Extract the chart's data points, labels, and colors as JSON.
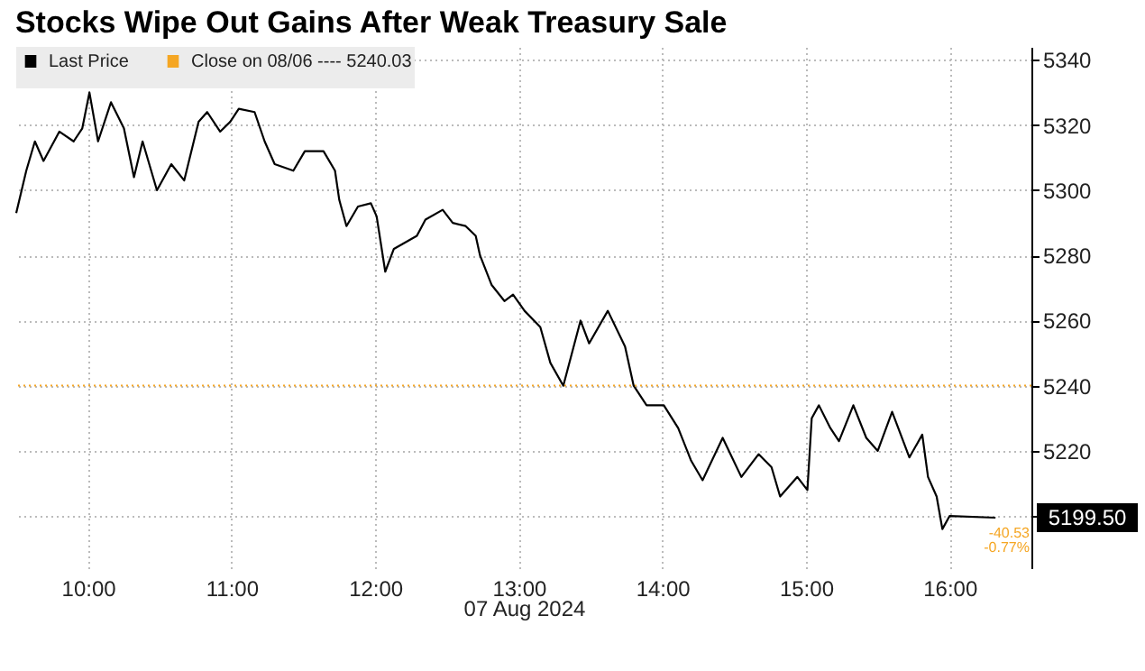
{
  "chart_data": {
    "type": "line",
    "title": "Stocks Wipe Out Gains After Weak Treasury Sale",
    "xlabel": "07 Aug 2024",
    "x": [
      9.5,
      9.57,
      9.63,
      9.69,
      9.8,
      9.9,
      9.96,
      10.01,
      10.07,
      10.16,
      10.25,
      10.32,
      10.38,
      10.48,
      10.58,
      10.67,
      10.77,
      10.83,
      10.92,
      10.99,
      11.05,
      11.16,
      11.23,
      11.3,
      11.43,
      11.51,
      11.64,
      11.72,
      11.75,
      11.8,
      11.88,
      11.97,
      12.01,
      12.07,
      12.13,
      12.29,
      12.35,
      12.47,
      12.54,
      12.63,
      12.7,
      12.73,
      12.81,
      12.9,
      12.96,
      13.04,
      13.15,
      13.22,
      13.31,
      13.43,
      13.49,
      13.62,
      13.74,
      13.8,
      13.89,
      14.01,
      14.11,
      14.2,
      14.28,
      14.42,
      14.55,
      14.67,
      14.76,
      14.82,
      14.94,
      15.01,
      15.04,
      15.09,
      15.17,
      15.23,
      15.33,
      15.42,
      15.5,
      15.6,
      15.72,
      15.81,
      15.85,
      15.91,
      15.95,
      16.0,
      16.32
    ],
    "series": [
      {
        "name": "Last Price",
        "color": "#000000",
        "values": [
          5293,
          5306,
          5315,
          5309,
          5318,
          5315,
          5319,
          5330,
          5315,
          5327,
          5319,
          5304,
          5315,
          5300,
          5308,
          5303,
          5321,
          5324,
          5318,
          5321,
          5325,
          5324,
          5315,
          5308,
          5306,
          5312,
          5312,
          5306,
          5297,
          5289,
          5295,
          5296,
          5292,
          5275,
          5282,
          5286,
          5291,
          5294,
          5290,
          5289,
          5286,
          5280,
          5271,
          5266,
          5268,
          5263,
          5258,
          5247,
          5240,
          5260,
          5253,
          5263,
          5252,
          5240,
          5234,
          5234,
          5227,
          5217,
          5211,
          5224,
          5212,
          5219,
          5215,
          5206,
          5212,
          5208,
          5230,
          5234,
          5227,
          5223,
          5234,
          5224,
          5220,
          5232,
          5218,
          5225,
          5212,
          5206,
          5196,
          5200,
          5199.5
        ]
      }
    ],
    "xlim": [
      9.5,
      16.57
    ],
    "xticks": [
      {
        "value": 10,
        "label": "10:00"
      },
      {
        "value": 11,
        "label": "11:00"
      },
      {
        "value": 12,
        "label": "12:00"
      },
      {
        "value": 13,
        "label": "13:00"
      },
      {
        "value": 14,
        "label": "14:00"
      },
      {
        "value": 15,
        "label": "15:00"
      },
      {
        "value": 16,
        "label": "16:00"
      }
    ],
    "ylim": [
      5184,
      5344
    ],
    "yticks": [
      {
        "value": 5200,
        "label": null
      },
      5220,
      5240,
      5260,
      5280,
      5300,
      5320,
      5340
    ],
    "grid": true,
    "legend": "top left",
    "line_style": "solid",
    "ref_lines": [
      {
        "axis": "y",
        "value": 5240.03,
        "label": "Close on 08/06 ---- 5240.03",
        "color": "#f5a623",
        "line_style": "dotted"
      }
    ],
    "annotations": [
      "5199.50",
      "-40.53",
      "-0.77%"
    ]
  }
}
